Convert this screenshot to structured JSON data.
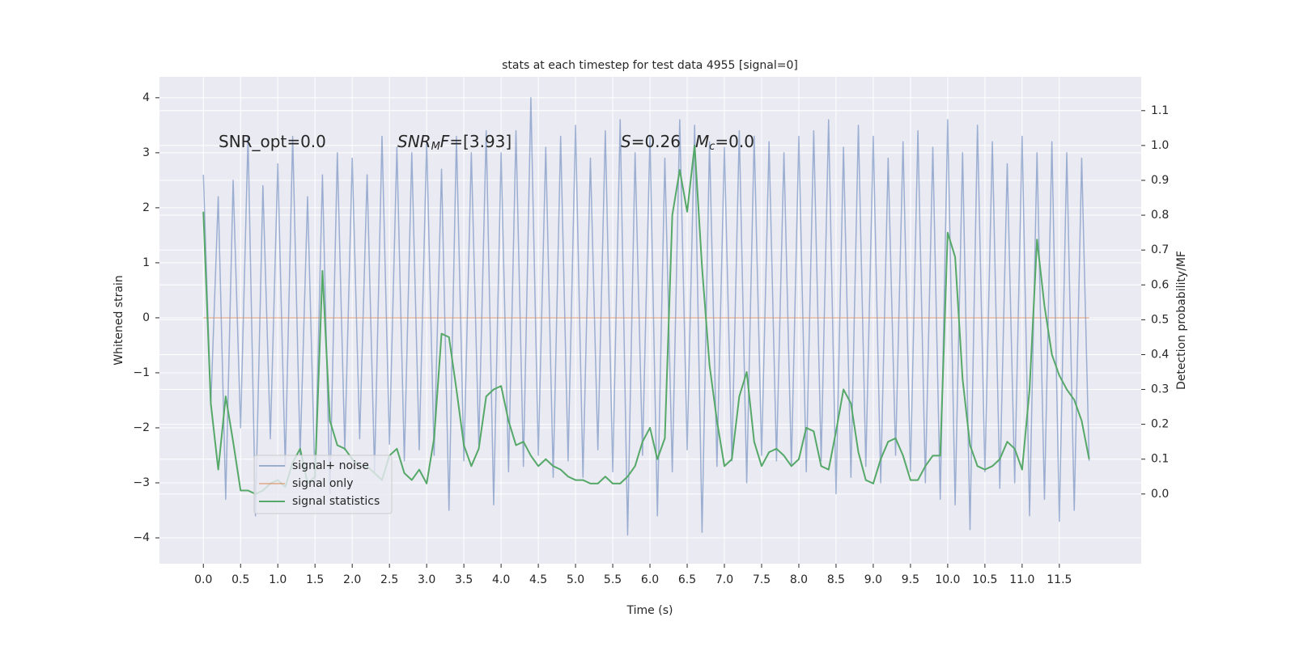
{
  "chart_data": {
    "type": "line",
    "title": "stats at each timestep for test data 4955 [signal=0]",
    "xlabel": "Time (s)",
    "ylabel": "Whitened strain",
    "y2label": "Detection probability/MF",
    "annotations": [
      [
        "SNR_opt=0.0"
      ],
      [
        "SNR",
        "M",
        "F",
        "=[3.93]"
      ],
      [
        "S",
        "=0.26"
      ],
      [
        "M",
        "c",
        "=0.0"
      ]
    ],
    "xlim": [
      -0.59,
      12.6
    ],
    "ylim": [
      -4.47,
      4.38
    ],
    "y2lim": [
      -0.2,
      1.197
    ],
    "xticks": [
      {
        "value": 0,
        "label": "0.0"
      },
      0.5,
      {
        "value": 1,
        "label": "1.0"
      },
      1.5,
      {
        "value": 2,
        "label": "2.0"
      },
      2.5,
      {
        "value": 3,
        "label": "3.0"
      },
      3.5,
      {
        "value": 4,
        "label": "4.0"
      },
      4.5,
      {
        "value": 5,
        "label": "5.0"
      },
      5.5,
      {
        "value": 6,
        "label": "6.0"
      },
      6.5,
      {
        "value": 7,
        "label": "7.0"
      },
      7.5,
      {
        "value": 8,
        "label": "8.0"
      },
      8.5,
      {
        "value": 9,
        "label": "9.0"
      },
      9.5,
      {
        "value": 10,
        "label": "10.0"
      },
      10.5,
      {
        "value": 11,
        "label": "11.0"
      },
      11.5
    ],
    "yticks": [
      {
        "value": -4,
        "label": "−4"
      },
      {
        "value": -3,
        "label": "−3"
      },
      {
        "value": -2,
        "label": "−2"
      },
      {
        "value": -1,
        "label": "−1"
      },
      0,
      1,
      2,
      3,
      4
    ],
    "y2ticks": [
      {
        "value": 0,
        "label": "0.0"
      },
      0.1,
      0.2,
      0.3,
      0.4,
      0.5,
      0.6,
      0.7,
      0.8,
      0.9,
      {
        "value": 1,
        "label": "1.0"
      },
      1.1
    ],
    "grid": true,
    "legend": "lower left",
    "x": [
      0.0,
      0.1,
      0.2,
      0.3,
      0.4,
      0.5,
      0.6,
      0.7,
      0.8,
      0.9,
      1.0,
      1.1,
      1.2,
      1.3,
      1.4,
      1.5,
      1.6,
      1.7,
      1.8,
      1.9,
      2.0,
      2.1,
      2.2,
      2.3,
      2.4,
      2.5,
      2.6,
      2.7,
      2.8,
      2.9,
      3.0,
      3.1,
      3.2,
      3.3,
      3.4,
      3.5,
      3.6,
      3.7,
      3.8,
      3.9,
      4.0,
      4.1,
      4.2,
      4.3,
      4.4,
      4.5,
      4.6,
      4.7,
      4.8,
      4.9,
      5.0,
      5.1,
      5.2,
      5.3,
      5.4,
      5.5,
      5.6,
      5.7,
      5.8,
      5.9,
      6.0,
      6.1,
      6.2,
      6.3,
      6.4,
      6.5,
      6.6,
      6.7,
      6.8,
      6.9,
      7.0,
      7.1,
      7.2,
      7.3,
      7.4,
      7.5,
      7.6,
      7.7,
      7.8,
      7.9,
      8.0,
      8.1,
      8.2,
      8.3,
      8.4,
      8.5,
      8.6,
      8.7,
      8.8,
      8.9,
      9.0,
      9.1,
      9.2,
      9.3,
      9.4,
      9.5,
      9.6,
      9.7,
      9.8,
      9.9,
      10.0,
      10.1,
      10.2,
      10.3,
      10.4,
      10.5,
      10.6,
      10.7,
      10.8,
      10.9,
      11.0,
      11.1,
      11.2,
      11.3,
      11.4,
      11.5,
      11.6,
      11.7,
      11.8,
      11.9
    ],
    "series": [
      {
        "name": "signal+ noise",
        "color": "#4c72b0",
        "alpha": 0.5,
        "values": [
          2.6,
          -1.6,
          2.2,
          -3.3,
          2.5,
          -2.0,
          3.3,
          -3.6,
          2.4,
          -2.2,
          2.8,
          -2.7,
          3.3,
          -2.5,
          2.2,
          -3.0,
          2.6,
          -3.2,
          3.0,
          -2.4,
          2.9,
          -2.2,
          2.6,
          -2.8,
          3.3,
          -2.3,
          3.1,
          -2.6,
          3.0,
          -2.4,
          3.2,
          -2.5,
          2.7,
          -3.5,
          3.3,
          -2.6,
          3.0,
          -2.3,
          3.4,
          -3.4,
          3.0,
          -2.8,
          3.4,
          -2.7,
          4.0,
          -2.5,
          3.1,
          -2.9,
          3.3,
          -2.6,
          3.5,
          -2.9,
          2.9,
          -2.4,
          3.4,
          -2.8,
          3.6,
          -3.95,
          3.0,
          -2.5,
          3.3,
          -3.6,
          2.9,
          -2.8,
          3.6,
          -2.4,
          3.5,
          -3.9,
          3.2,
          -2.7,
          3.1,
          -2.6,
          3.4,
          -3.0,
          3.3,
          -2.5,
          3.2,
          -2.6,
          3.0,
          -2.7,
          3.3,
          -2.8,
          3.4,
          -2.6,
          3.6,
          -3.2,
          3.1,
          -2.9,
          3.5,
          -2.7,
          3.3,
          -3.0,
          2.9,
          -2.5,
          3.2,
          -2.8,
          3.4,
          -3.0,
          3.1,
          -3.3,
          3.6,
          -3.4,
          3.0,
          -3.85,
          3.5,
          -2.8,
          3.2,
          -3.1,
          2.8,
          -3.0,
          3.3,
          -3.6,
          3.0,
          -3.3,
          3.2,
          -3.7,
          3.0,
          -3.5,
          2.9,
          -2.6
        ]
      },
      {
        "name": "signal only",
        "color": "#dd8452",
        "alpha": 0.5,
        "values": [
          0,
          0,
          0,
          0,
          0,
          0,
          0,
          0,
          0,
          0,
          0,
          0,
          0,
          0,
          0,
          0,
          0,
          0,
          0,
          0,
          0,
          0,
          0,
          0,
          0,
          0,
          0,
          0,
          0,
          0,
          0,
          0,
          0,
          0,
          0,
          0,
          0,
          0,
          0,
          0,
          0,
          0,
          0,
          0,
          0,
          0,
          0,
          0,
          0,
          0,
          0,
          0,
          0,
          0,
          0,
          0,
          0,
          0,
          0,
          0,
          0,
          0,
          0,
          0,
          0,
          0,
          0,
          0,
          0,
          0,
          0,
          0,
          0,
          0,
          0,
          0,
          0,
          0,
          0,
          0,
          0,
          0,
          0,
          0,
          0,
          0,
          0,
          0,
          0,
          0,
          0,
          0,
          0,
          0,
          0,
          0,
          0,
          0,
          0,
          0,
          0,
          0,
          0,
          0,
          0,
          0,
          0,
          0,
          0,
          0,
          0,
          0,
          0,
          0,
          0,
          0,
          0,
          0,
          0,
          0
        ]
      },
      {
        "name": "signal statistics",
        "color": "#55a868",
        "alpha": 1,
        "axis": "y2",
        "values": [
          0.81,
          0.26,
          0.07,
          0.28,
          0.15,
          0.01,
          0.01,
          0.0,
          0.01,
          0.03,
          0.04,
          0.02,
          0.09,
          0.13,
          0.03,
          0.05,
          0.64,
          0.21,
          0.14,
          0.13,
          0.1,
          0.08,
          0.08,
          0.06,
          0.04,
          0.11,
          0.13,
          0.06,
          0.04,
          0.07,
          0.03,
          0.16,
          0.46,
          0.45,
          0.3,
          0.14,
          0.08,
          0.13,
          0.28,
          0.3,
          0.31,
          0.21,
          0.14,
          0.15,
          0.11,
          0.08,
          0.1,
          0.08,
          0.07,
          0.05,
          0.04,
          0.04,
          0.03,
          0.03,
          0.05,
          0.03,
          0.03,
          0.05,
          0.08,
          0.15,
          0.19,
          0.1,
          0.16,
          0.8,
          0.93,
          0.81,
          1.0,
          0.65,
          0.37,
          0.21,
          0.08,
          0.1,
          0.28,
          0.35,
          0.15,
          0.08,
          0.12,
          0.13,
          0.11,
          0.08,
          0.1,
          0.19,
          0.18,
          0.08,
          0.07,
          0.18,
          0.3,
          0.26,
          0.12,
          0.04,
          0.03,
          0.1,
          0.15,
          0.16,
          0.11,
          0.04,
          0.04,
          0.08,
          0.11,
          0.11,
          0.75,
          0.68,
          0.33,
          0.14,
          0.08,
          0.07,
          0.08,
          0.1,
          0.15,
          0.13,
          0.07,
          0.3,
          0.73,
          0.54,
          0.4,
          0.34,
          0.3,
          0.27,
          0.21,
          0.1
        ]
      }
    ]
  }
}
